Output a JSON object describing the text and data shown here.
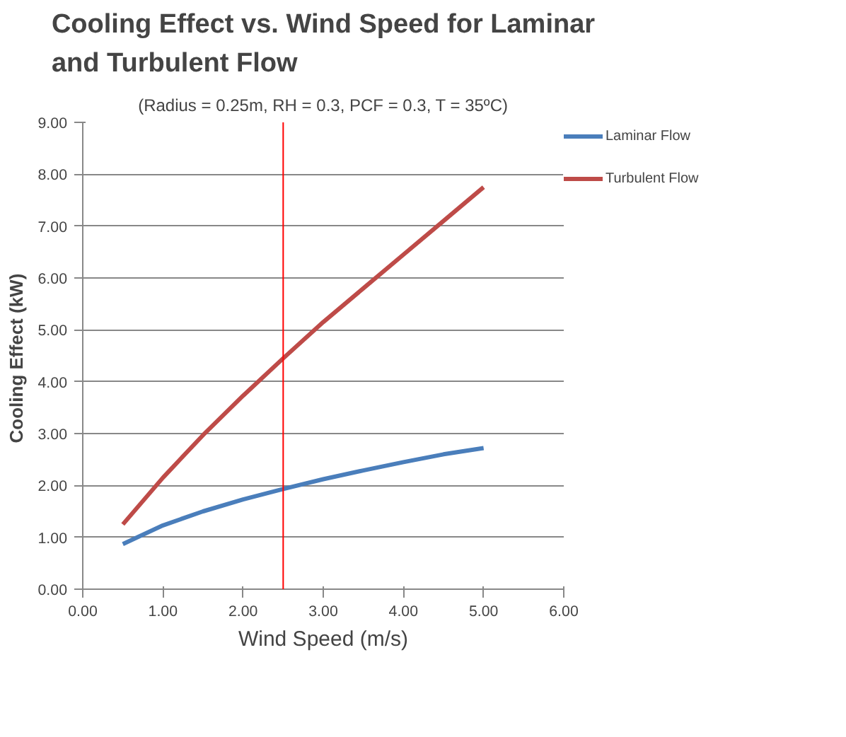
{
  "chart_data": {
    "type": "line",
    "title": "Cooling Effect vs. Wind Speed for Laminar\nand Turbulent Flow",
    "subtitle": "(Radius = 0.25m, RH = 0.3, PCF = 0.3, T = 35ºC)",
    "xlabel": "Wind Speed (m/s)",
    "ylabel": "Cooling Effect  (kW)",
    "x": [
      0.5,
      1.0,
      1.5,
      2.0,
      2.5,
      3.0,
      3.5,
      4.0,
      4.5,
      5.0
    ],
    "series": [
      {
        "name": "Laminar Flow",
        "color": "#4a7ebb",
        "values": [
          0.87,
          1.23,
          1.5,
          1.73,
          1.93,
          2.12,
          2.29,
          2.45,
          2.6,
          2.72
        ]
      },
      {
        "name": "Turbulent Flow",
        "color": "#be4b48",
        "values": [
          1.25,
          2.15,
          2.97,
          3.73,
          4.45,
          5.15,
          5.8,
          6.45,
          7.1,
          7.75
        ]
      }
    ],
    "xlim": [
      0,
      6
    ],
    "ylim": [
      0,
      9
    ],
    "xticks": [
      {
        "value": 0,
        "label": "0.00"
      },
      {
        "value": 1,
        "label": "1.00"
      },
      {
        "value": 2,
        "label": "2.00"
      },
      {
        "value": 3,
        "label": "3.00"
      },
      {
        "value": 4,
        "label": "4.00"
      },
      {
        "value": 5,
        "label": "5.00"
      },
      {
        "value": 6,
        "label": "6.00"
      }
    ],
    "yticks": [
      {
        "value": 0,
        "label": "0.00"
      },
      {
        "value": 1,
        "label": "1.00"
      },
      {
        "value": 2,
        "label": "2.00"
      },
      {
        "value": 3,
        "label": "3.00"
      },
      {
        "value": 4,
        "label": "4.00"
      },
      {
        "value": 5,
        "label": "5.00"
      },
      {
        "value": 6,
        "label": "6.00"
      },
      {
        "value": 7,
        "label": "7.00"
      },
      {
        "value": 8,
        "label": "8.00"
      },
      {
        "value": 9,
        "label": "9.00"
      }
    ],
    "ref_lines": [
      {
        "axis": "x",
        "value": 2.5,
        "color": "#ff0000"
      }
    ],
    "grid": "y",
    "legend": "right",
    "marker": "none",
    "line_style": "solid"
  }
}
